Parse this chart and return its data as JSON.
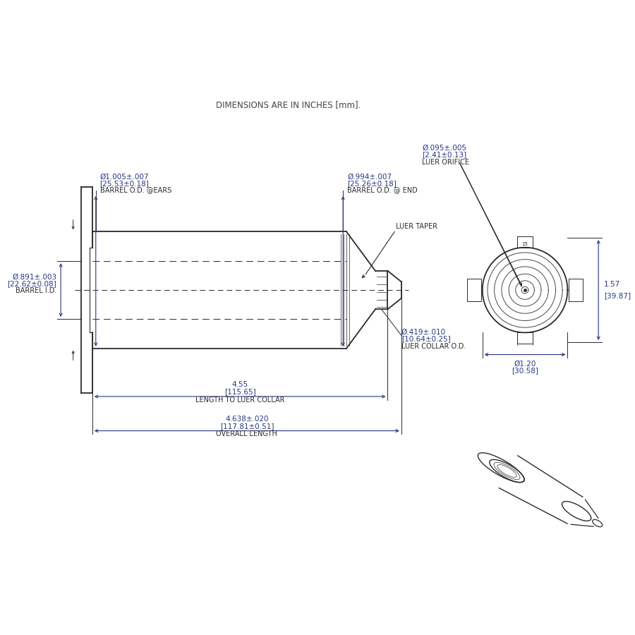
{
  "bg_color": "#ffffff",
  "dim_color": "#2a3580",
  "draw_color": "#2a2a2a",
  "title_color": "#444444",
  "annotations": {
    "dim_title": "DIMENSIONS ARE IN INCHES [mm].",
    "barrel_od_ears_val": "Ø1.005±.007",
    "barrel_od_ears_mm": "[25.53±0.18]",
    "barrel_od_ears_label": "BARREL O.D. @EARS",
    "barrel_od_end_val": "Ø.994±.007",
    "barrel_od_end_mm": "[25.26±0.18]",
    "barrel_od_end_label": "BARREL O.D. @ END",
    "barrel_id_val": "Ø.891±.003",
    "barrel_id_mm": "[22.62±0.08]",
    "barrel_id_label": "BARREL I.D.",
    "luer_orifice_val": "Ø.095±.005",
    "luer_orifice_mm": "[2.41±0.13]",
    "luer_orifice_label": "LUER ORIFICE",
    "luer_taper_label": "LUER TAPER",
    "luer_collar_val": "Ø.419±.010",
    "luer_collar_mm": "[10.64±0.25]",
    "luer_collar_label": "LUER COLLAR O.D.",
    "length_luer_val": "4.55",
    "length_luer_mm": "[115.65]",
    "length_luer_label": "LENGTH TO LUER COLLAR",
    "overall_len_val": "4.638±.020",
    "overall_len_mm": "[117.81±0.51]",
    "overall_len_label": "OVERALL LENGTH",
    "front_od_val": "Ø1.20",
    "front_od_mm": "[30.58]",
    "front_height_val": "1.57",
    "front_height_mm": "[39.87]"
  },
  "layout": {
    "fig_w": 9.0,
    "fig_h": 9.0,
    "dpi": 100
  }
}
